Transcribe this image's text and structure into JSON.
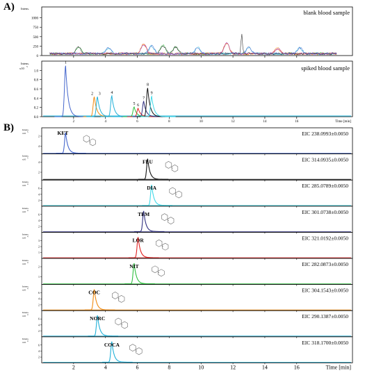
{
  "panel_a_label": "A)",
  "panel_b_label": "B)",
  "chart_data": [
    {
      "type": "line",
      "panel": "A-top",
      "title": "blank blood sample",
      "ylabel": "Intens.",
      "ytick_labels": [
        "0",
        "250",
        "500",
        "750",
        "1000"
      ],
      "ylim": [
        0,
        1250
      ],
      "xlim": [
        0,
        19.5
      ],
      "xtick_labels": [
        "2",
        "4",
        "6",
        "8",
        "10",
        "12",
        "14",
        "16"
      ],
      "xlabel": "Time [min]",
      "note": "noise-level baseline only"
    },
    {
      "type": "line",
      "panel": "A-bottom",
      "title": "spiked blood sample",
      "ylabel": "Intens.",
      "y_multiplier": "x10",
      "y_exponent": "5",
      "ytick_labels": [
        "0.0",
        "0.2",
        "0.4",
        "0.6",
        "0.8",
        "1.0"
      ],
      "ylim": [
        0,
        1.2
      ],
      "xlim": [
        0,
        19.5
      ],
      "xtick_labels": [
        "2",
        "4",
        "6",
        "8",
        "10",
        "12",
        "14",
        "16"
      ],
      "xlabel": "Time [min]",
      "series": [
        {
          "label": "1",
          "rt": 1.5,
          "height": 1.1,
          "color": "#4466cc"
        },
        {
          "label": "2",
          "rt": 3.3,
          "height": 0.43,
          "color": "#f08a10"
        },
        {
          "label": "3",
          "rt": 3.5,
          "height": 0.43,
          "color": "#20b0d8"
        },
        {
          "label": "4",
          "rt": 4.4,
          "height": 0.45,
          "color": "#20b0d8"
        },
        {
          "label": "5",
          "rt": 5.8,
          "height": 0.21,
          "color": "#30c040"
        },
        {
          "label": "6",
          "rt": 6.05,
          "height": 0.18,
          "color": "#e02020"
        },
        {
          "label": "7",
          "rt": 6.4,
          "height": 0.33,
          "color": "#303080"
        },
        {
          "label": "8",
          "rt": 6.65,
          "height": 0.62,
          "color": "#111111"
        },
        {
          "label": "9",
          "rt": 6.9,
          "height": 0.44,
          "color": "#40d8e8"
        }
      ]
    },
    {
      "type": "line",
      "panel": "B",
      "xlabel": "Time [min]",
      "xlim": [
        0,
        19.5
      ],
      "xtick_labels": [
        "2",
        "4",
        "6",
        "8",
        "10",
        "12",
        "14",
        "16"
      ],
      "y_axis_label": "Intens.",
      "y_multiplier": "x10",
      "series": [
        {
          "name": "KET",
          "eic": "EIC 238.0993±0.0050",
          "rt": 1.5,
          "color": "#4466cc",
          "exp": "5",
          "ticks": [
            "2",
            "4"
          ]
        },
        {
          "name": "FLU",
          "eic": "EIC 314.0935±0.0050",
          "rt": 6.65,
          "color": "#111111",
          "exp": "5",
          "ticks": [
            "4",
            "2"
          ]
        },
        {
          "name": "DIA",
          "eic": "EIC 285.0789±0.0050",
          "rt": 6.9,
          "color": "#40d8e8",
          "exp": "4",
          "ticks": [
            "6",
            "4",
            "2"
          ]
        },
        {
          "name": "TEM",
          "eic": "EIC 301.0738±0.0050",
          "rt": 6.4,
          "color": "#303080",
          "exp": "4",
          "ticks": [
            "6",
            "4",
            "2"
          ]
        },
        {
          "name": "LOR",
          "eic": "EIC 321.0192±0.0050",
          "rt": 6.05,
          "color": "#e02020",
          "exp": "4",
          "ticks": [
            "3",
            "2",
            "1"
          ]
        },
        {
          "name": "NIT",
          "eic": "EIC 282.0873±0.0050",
          "rt": 5.8,
          "color": "#30c040",
          "exp": "4",
          "ticks": [
            "2",
            "1"
          ]
        },
        {
          "name": "COC",
          "eic": "EIC 304.1543±0.0050",
          "rt": 3.3,
          "color": "#f08a10",
          "exp": "4",
          "ticks": [
            "6",
            "4",
            "2"
          ]
        },
        {
          "name": "NORC",
          "eic": "EIC 290.1387±0.0050",
          "rt": 3.5,
          "color": "#20b0d8",
          "exp": "4",
          "ticks": [
            "6",
            "4",
            "2"
          ]
        },
        {
          "name": "COCA",
          "eic": "EIC 318.1700±0.0050",
          "rt": 4.4,
          "color": "#20b0d8",
          "exp": "4",
          "ticks": [
            "6",
            "4",
            "2"
          ]
        }
      ]
    }
  ]
}
